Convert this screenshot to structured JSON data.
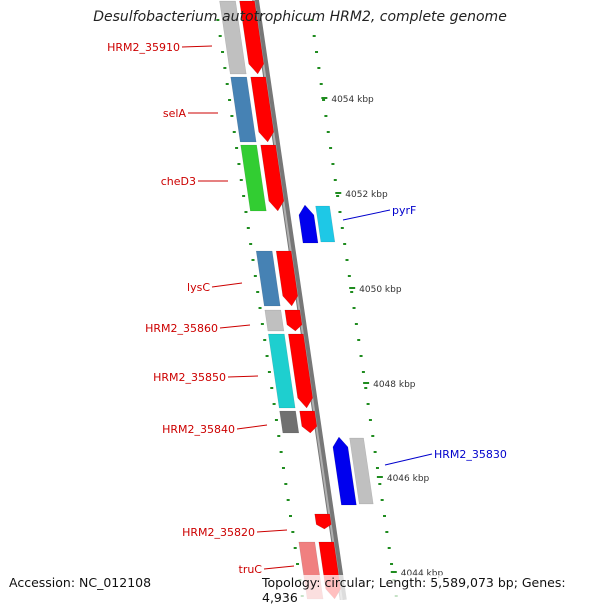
{
  "title": "Desulfobacterium autotrophicum HRM2, complete genome",
  "accession": "Accession: NC_012108",
  "topology": "Topology: circular; Length: 5,589,073 bp; Genes: 4,936",
  "colors": {
    "background": "#ffffff",
    "backbone": "#8c8c8c",
    "tick": "#1f8c1f",
    "left_label": "#cc0000",
    "right_label": "#0000cc",
    "strand_minus": "#ff0000",
    "strand_plus": "#0000ee"
  },
  "axis_labels": [
    {
      "text": "4054 kbp",
      "kbp": 4054
    },
    {
      "text": "4052 kbp",
      "kbp": 4052
    },
    {
      "text": "4050 kbp",
      "kbp": 4050
    },
    {
      "text": "4048 kbp",
      "kbp": 4048
    },
    {
      "text": "4046 kbp",
      "kbp": 4046
    },
    {
      "text": "4044 kbp",
      "kbp": 4044
    }
  ],
  "left_labels": [
    "HRM2_35910",
    "selA",
    "cheD3",
    "lysC",
    "HRM2_35860",
    "HRM2_35850",
    "HRM2_35840",
    "HRM2_35820",
    "truC"
  ],
  "right_labels": [
    "pyrF",
    "HRM2_35830"
  ],
  "genes": [
    {
      "name": "HRM2_35910",
      "strand": "-",
      "category_color": "#c0c0c0"
    },
    {
      "name": "selA",
      "strand": "-",
      "category_color": "#4682b4"
    },
    {
      "name": "cheD3",
      "strand": "-",
      "category_color": "#32cd32"
    },
    {
      "name": "pyrF",
      "strand": "+",
      "category_color": "#1ec8e6"
    },
    {
      "name": "lysC",
      "strand": "-",
      "category_color": "#4682b4"
    },
    {
      "name": "HRM2_35860",
      "strand": "-",
      "category_color": "#c0c0c0"
    },
    {
      "name": "HRM2_35850",
      "strand": "-",
      "category_color": "#1ecfcf"
    },
    {
      "name": "HRM2_35840",
      "strand": "-",
      "category_color": "#707070"
    },
    {
      "name": "HRM2_35830",
      "strand": "+",
      "category_color": "#c0c0c0"
    },
    {
      "name": "HRM2_35820",
      "strand": "-",
      "category_color": "#ffffff"
    },
    {
      "name": "truC",
      "strand": "-",
      "category_color": "#f08080"
    }
  ]
}
